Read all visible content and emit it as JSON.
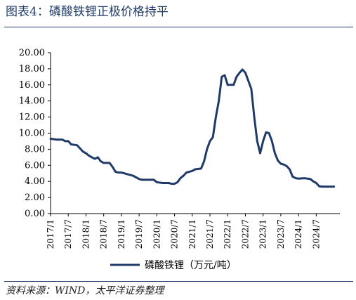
{
  "figure": {
    "title": "图表4：磷酸铁锂正极价格持平",
    "source": "资料来源：WIND，太平洋证券整理"
  },
  "chart_data": {
    "type": "line",
    "title": "",
    "xlabel": "",
    "ylabel": "",
    "x_range": [
      "2017-01",
      "2025-03"
    ],
    "ylim": [
      0,
      20
    ],
    "y_ticks": [
      "20.00",
      "18.00",
      "16.00",
      "14.00",
      "12.00",
      "10.00",
      "8.00",
      "6.00",
      "4.00",
      "2.00",
      "0.00"
    ],
    "x_ticks": [
      "2017/1",
      "2017/7",
      "2018/1",
      "2018/7",
      "2019/1",
      "2019/7",
      "2020/1",
      "2020/7",
      "2021/1",
      "2021/7",
      "2022/1",
      "2022/7",
      "2023/1",
      "2023/7",
      "2024/1",
      "2024/7"
    ],
    "grid": false,
    "legend_position": "bottom",
    "line_color": "#1f3a68",
    "series": [
      {
        "name": "磷酸铁锂（万元/吨）",
        "points": [
          [
            "2017-01",
            9.3
          ],
          [
            "2017-03",
            9.2
          ],
          [
            "2017-05",
            9.2
          ],
          [
            "2017-06",
            9.0
          ],
          [
            "2017-07",
            9.0
          ],
          [
            "2017-08",
            8.6
          ],
          [
            "2017-10",
            8.5
          ],
          [
            "2017-11",
            8.1
          ],
          [
            "2017-12",
            7.7
          ],
          [
            "2018-01",
            7.5
          ],
          [
            "2018-02",
            7.2
          ],
          [
            "2018-03",
            7.0
          ],
          [
            "2018-04",
            6.8
          ],
          [
            "2018-05",
            7.0
          ],
          [
            "2018-06",
            6.5
          ],
          [
            "2018-07",
            6.3
          ],
          [
            "2018-08",
            6.3
          ],
          [
            "2018-09",
            6.3
          ],
          [
            "2018-10",
            5.8
          ],
          [
            "2018-11",
            5.2
          ],
          [
            "2018-12",
            5.1
          ],
          [
            "2019-01",
            5.1
          ],
          [
            "2019-03",
            4.9
          ],
          [
            "2019-05",
            4.7
          ],
          [
            "2019-06",
            4.5
          ],
          [
            "2019-07",
            4.3
          ],
          [
            "2019-08",
            4.2
          ],
          [
            "2019-10",
            4.2
          ],
          [
            "2019-12",
            4.2
          ],
          [
            "2020-01",
            3.9
          ],
          [
            "2020-03",
            3.8
          ],
          [
            "2020-05",
            3.8
          ],
          [
            "2020-06",
            3.7
          ],
          [
            "2020-07",
            3.7
          ],
          [
            "2020-08",
            3.9
          ],
          [
            "2020-09",
            4.4
          ],
          [
            "2020-10",
            4.7
          ],
          [
            "2020-11",
            5.1
          ],
          [
            "2021-01",
            5.3
          ],
          [
            "2021-02",
            5.5
          ],
          [
            "2021-04",
            5.6
          ],
          [
            "2021-05",
            6.5
          ],
          [
            "2021-06",
            8.0
          ],
          [
            "2021-07",
            9.0
          ],
          [
            "2021-08",
            9.5
          ],
          [
            "2021-09",
            12.0
          ],
          [
            "2021-10",
            14.0
          ],
          [
            "2021-11",
            17.0
          ],
          [
            "2021-12",
            17.2
          ],
          [
            "2022-01",
            16.0
          ],
          [
            "2022-02",
            16.0
          ],
          [
            "2022-03",
            16.0
          ],
          [
            "2022-04",
            17.0
          ],
          [
            "2022-05",
            17.5
          ],
          [
            "2022-06",
            17.9
          ],
          [
            "2022-07",
            17.5
          ],
          [
            "2022-08",
            16.5
          ],
          [
            "2022-09",
            15.5
          ],
          [
            "2022-10",
            12.0
          ],
          [
            "2022-11",
            9.0
          ],
          [
            "2022-12",
            7.5
          ],
          [
            "2023-01",
            9.0
          ],
          [
            "2023-02",
            10.1
          ],
          [
            "2023-03",
            10.0
          ],
          [
            "2023-04",
            9.0
          ],
          [
            "2023-05",
            7.5
          ],
          [
            "2023-06",
            6.6
          ],
          [
            "2023-07",
            6.2
          ],
          [
            "2023-08",
            6.1
          ],
          [
            "2023-09",
            5.9
          ],
          [
            "2023-10",
            5.5
          ],
          [
            "2023-11",
            4.6
          ],
          [
            "2023-12",
            4.4
          ],
          [
            "2024-01",
            4.35
          ],
          [
            "2024-03",
            4.4
          ],
          [
            "2024-05",
            4.3
          ],
          [
            "2024-06",
            4.0
          ],
          [
            "2024-07",
            3.8
          ],
          [
            "2024-08",
            3.4
          ],
          [
            "2024-09",
            3.35
          ],
          [
            "2024-11",
            3.35
          ],
          [
            "2025-01",
            3.35
          ]
        ]
      }
    ]
  }
}
